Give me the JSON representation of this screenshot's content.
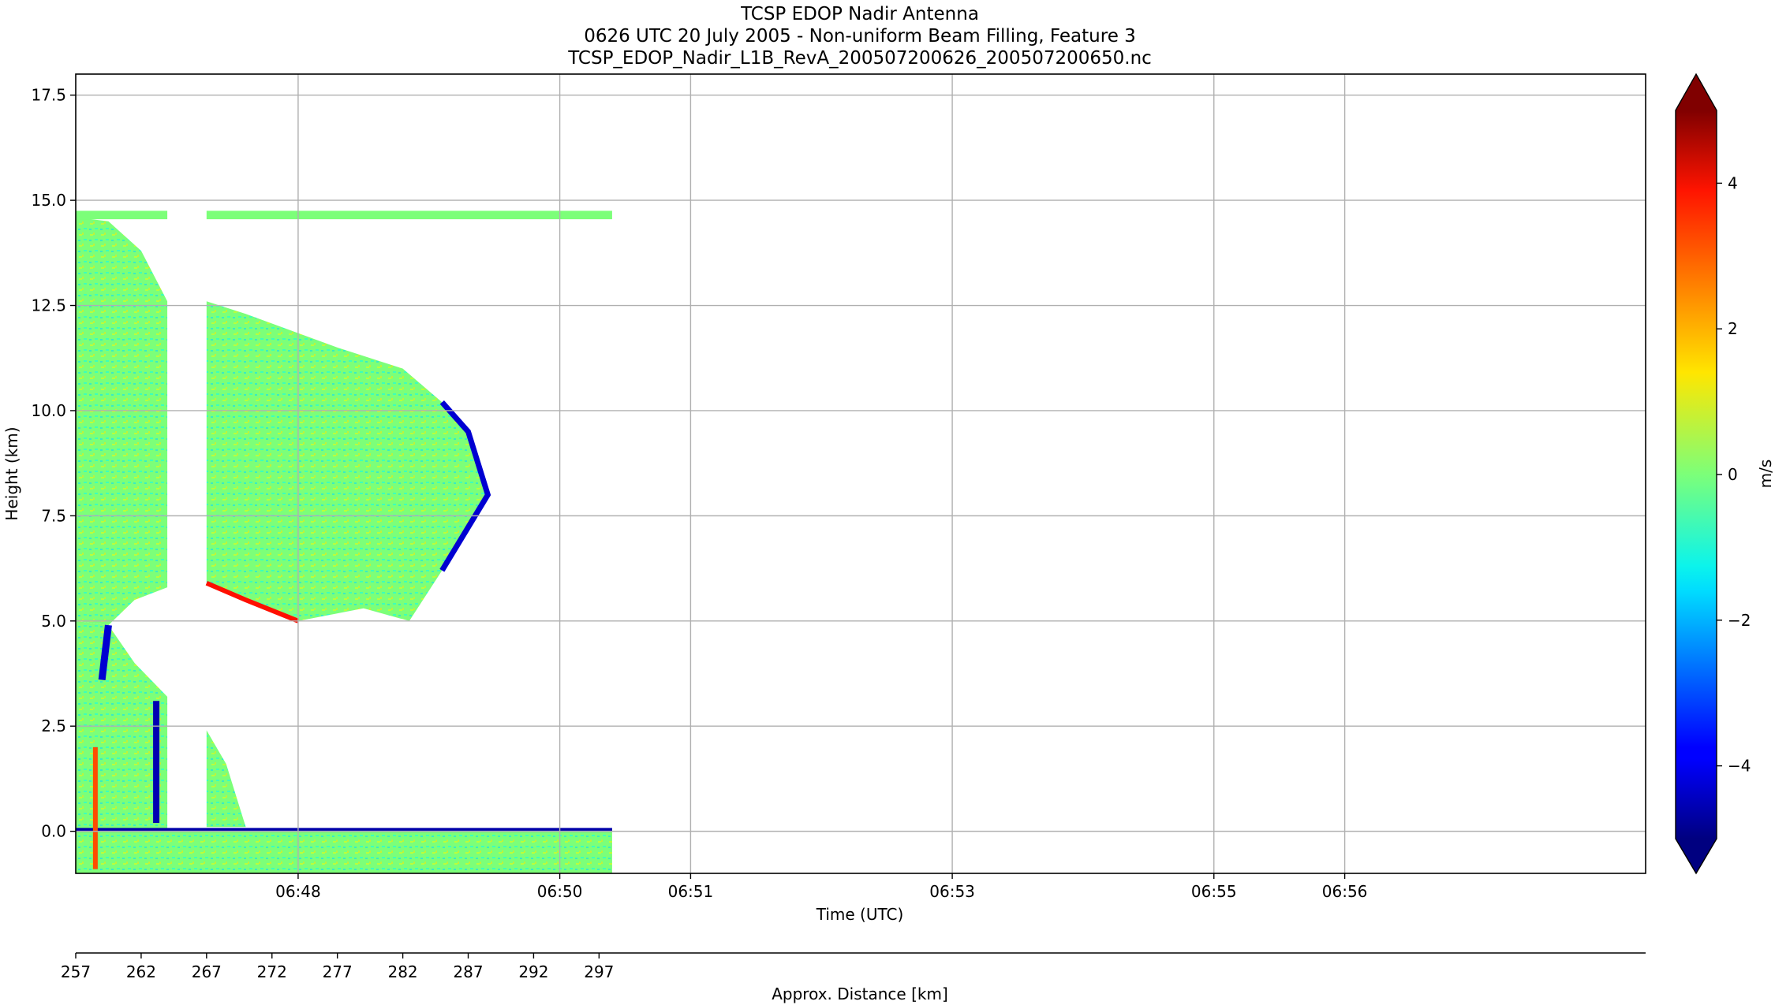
{
  "title_lines": [
    "TCSP EDOP Nadir Antenna",
    "0626 UTC 20 July 2005 - Non-uniform Beam Filling, Feature 3",
    "TCSP_EDOP_Nadir_L1B_RevA_200507200626_200507200650.nc"
  ],
  "colors": {
    "grid": "#b0b0b0",
    "axis": "#000000",
    "colormap": "jet"
  },
  "chart_data": {
    "type": "heatmap",
    "xlabel": "Time (UTC)",
    "ylabel": "Height (km)",
    "x_tick_labels": [
      "06:48",
      "06:50",
      "06:51",
      "06:53",
      "06:55",
      "06:56"
    ],
    "x_tick_times_min": [
      48.0,
      50.0,
      51.0,
      53.0,
      55.0,
      56.0
    ],
    "xlim_min": [
      46.3,
      58.3
    ],
    "ylim": [
      -1.0,
      18.0
    ],
    "y_ticks": [
      0.0,
      2.5,
      5.0,
      7.5,
      10.0,
      12.5,
      15.0,
      17.5
    ],
    "y_tick_labels": [
      "0.0",
      "2.5",
      "5.0",
      "7.5",
      "10.0",
      "12.5",
      "15.0",
      "17.5"
    ],
    "grid": true,
    "data_extent_min": [
      46.3,
      50.4
    ],
    "secondary_axis": {
      "label": "Approx. Distance [km]",
      "ticks": [
        257,
        262,
        267,
        272,
        277,
        282,
        287,
        292,
        297
      ],
      "range_km": [
        257,
        298
      ]
    },
    "colorbar": {
      "label": "m/s",
      "range": [
        -5,
        5
      ],
      "ticks": [
        4,
        2,
        0,
        -2,
        -4
      ],
      "tick_labels": [
        "4",
        "2",
        "0",
        "−2",
        "−4"
      ],
      "extend": "both"
    },
    "features": {
      "cloud_top_km": [
        14.6,
        14.5,
        13.8,
        12.6,
        12.3,
        11.5,
        11.0,
        10.2,
        9.5,
        8.0,
        6.2
      ],
      "cloud_top_time_min": [
        46.3,
        46.55,
        46.8,
        47.3,
        47.6,
        48.3,
        48.8,
        49.1,
        49.3,
        49.45,
        49.1
      ],
      "upper_band_km": [
        14.55,
        14.75
      ],
      "anvil_base_km": [
        5.9,
        5.5,
        5.0,
        5.3,
        5.0
      ],
      "anvil_base_time_min": [
        47.3,
        47.6,
        48.0,
        48.5,
        48.85
      ],
      "gap_time_min": [
        47.0,
        47.3
      ]
    }
  }
}
